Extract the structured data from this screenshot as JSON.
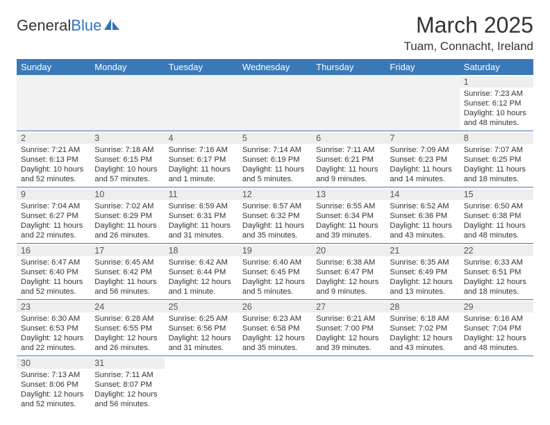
{
  "brand": {
    "word1": "General",
    "word2": "Blue"
  },
  "title": "March 2025",
  "location": "Tuam, Connacht, Ireland",
  "colors": {
    "header_bg": "#3a79b8",
    "header_text": "#ffffff",
    "border": "#3a79b8",
    "daynum_bg": "#eeeeee",
    "text": "#333333",
    "blank_bg": "#f2f2f2"
  },
  "weekdays": [
    "Sunday",
    "Monday",
    "Tuesday",
    "Wednesday",
    "Thursday",
    "Friday",
    "Saturday"
  ],
  "weeks": [
    [
      null,
      null,
      null,
      null,
      null,
      null,
      {
        "n": "1",
        "sr": "7:23 AM",
        "ss": "6:12 PM",
        "dl": "10 hours and 48 minutes."
      }
    ],
    [
      {
        "n": "2",
        "sr": "7:21 AM",
        "ss": "6:13 PM",
        "dl": "10 hours and 52 minutes."
      },
      {
        "n": "3",
        "sr": "7:18 AM",
        "ss": "6:15 PM",
        "dl": "10 hours and 57 minutes."
      },
      {
        "n": "4",
        "sr": "7:16 AM",
        "ss": "6:17 PM",
        "dl": "11 hours and 1 minute."
      },
      {
        "n": "5",
        "sr": "7:14 AM",
        "ss": "6:19 PM",
        "dl": "11 hours and 5 minutes."
      },
      {
        "n": "6",
        "sr": "7:11 AM",
        "ss": "6:21 PM",
        "dl": "11 hours and 9 minutes."
      },
      {
        "n": "7",
        "sr": "7:09 AM",
        "ss": "6:23 PM",
        "dl": "11 hours and 14 minutes."
      },
      {
        "n": "8",
        "sr": "7:07 AM",
        "ss": "6:25 PM",
        "dl": "11 hours and 18 minutes."
      }
    ],
    [
      {
        "n": "9",
        "sr": "7:04 AM",
        "ss": "6:27 PM",
        "dl": "11 hours and 22 minutes."
      },
      {
        "n": "10",
        "sr": "7:02 AM",
        "ss": "6:29 PM",
        "dl": "11 hours and 26 minutes."
      },
      {
        "n": "11",
        "sr": "6:59 AM",
        "ss": "6:31 PM",
        "dl": "11 hours and 31 minutes."
      },
      {
        "n": "12",
        "sr": "6:57 AM",
        "ss": "6:32 PM",
        "dl": "11 hours and 35 minutes."
      },
      {
        "n": "13",
        "sr": "6:55 AM",
        "ss": "6:34 PM",
        "dl": "11 hours and 39 minutes."
      },
      {
        "n": "14",
        "sr": "6:52 AM",
        "ss": "6:36 PM",
        "dl": "11 hours and 43 minutes."
      },
      {
        "n": "15",
        "sr": "6:50 AM",
        "ss": "6:38 PM",
        "dl": "11 hours and 48 minutes."
      }
    ],
    [
      {
        "n": "16",
        "sr": "6:47 AM",
        "ss": "6:40 PM",
        "dl": "11 hours and 52 minutes."
      },
      {
        "n": "17",
        "sr": "6:45 AM",
        "ss": "6:42 PM",
        "dl": "11 hours and 56 minutes."
      },
      {
        "n": "18",
        "sr": "6:42 AM",
        "ss": "6:44 PM",
        "dl": "12 hours and 1 minute."
      },
      {
        "n": "19",
        "sr": "6:40 AM",
        "ss": "6:45 PM",
        "dl": "12 hours and 5 minutes."
      },
      {
        "n": "20",
        "sr": "6:38 AM",
        "ss": "6:47 PM",
        "dl": "12 hours and 9 minutes."
      },
      {
        "n": "21",
        "sr": "6:35 AM",
        "ss": "6:49 PM",
        "dl": "12 hours and 13 minutes."
      },
      {
        "n": "22",
        "sr": "6:33 AM",
        "ss": "6:51 PM",
        "dl": "12 hours and 18 minutes."
      }
    ],
    [
      {
        "n": "23",
        "sr": "6:30 AM",
        "ss": "6:53 PM",
        "dl": "12 hours and 22 minutes."
      },
      {
        "n": "24",
        "sr": "6:28 AM",
        "ss": "6:55 PM",
        "dl": "12 hours and 26 minutes."
      },
      {
        "n": "25",
        "sr": "6:25 AM",
        "ss": "6:56 PM",
        "dl": "12 hours and 31 minutes."
      },
      {
        "n": "26",
        "sr": "6:23 AM",
        "ss": "6:58 PM",
        "dl": "12 hours and 35 minutes."
      },
      {
        "n": "27",
        "sr": "6:21 AM",
        "ss": "7:00 PM",
        "dl": "12 hours and 39 minutes."
      },
      {
        "n": "28",
        "sr": "6:18 AM",
        "ss": "7:02 PM",
        "dl": "12 hours and 43 minutes."
      },
      {
        "n": "29",
        "sr": "6:16 AM",
        "ss": "7:04 PM",
        "dl": "12 hours and 48 minutes."
      }
    ],
    [
      {
        "n": "30",
        "sr": "7:13 AM",
        "ss": "8:06 PM",
        "dl": "12 hours and 52 minutes."
      },
      {
        "n": "31",
        "sr": "7:11 AM",
        "ss": "8:07 PM",
        "dl": "12 hours and 56 minutes."
      },
      null,
      null,
      null,
      null,
      null
    ]
  ],
  "labels": {
    "sunrise": "Sunrise:",
    "sunset": "Sunset:",
    "daylight": "Daylight:"
  }
}
